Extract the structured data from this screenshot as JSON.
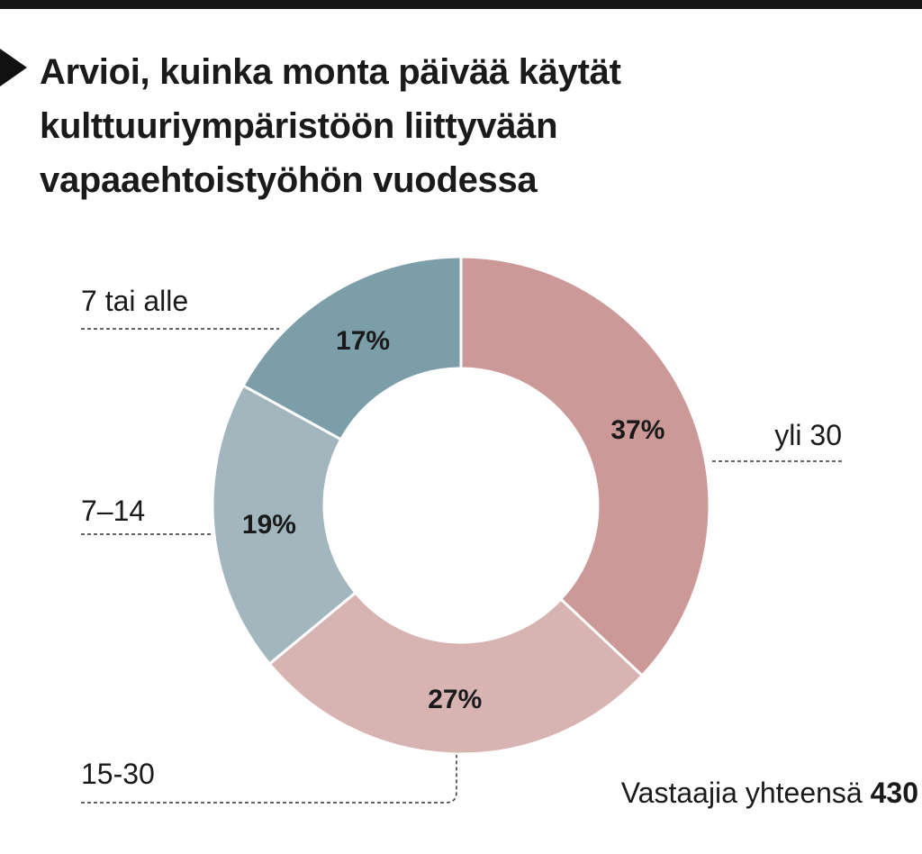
{
  "title_lines": [
    "Arvioi, kuinka monta päivää käytät",
    "kulttuuriympäristöön liittyvään",
    "vapaaehtoistyöhön vuodessa"
  ],
  "footer": {
    "label": "Vastaajia yhteensä",
    "value": "430"
  },
  "chart_data": {
    "type": "pie",
    "donut": true,
    "title": "Arvioi, kuinka monta päivää käytät kulttuuriympäristöön liittyvään vapaaehtoistyöhön vuodessa",
    "start": "12 o'clock, clockwise",
    "slices": [
      {
        "category": "yli 30",
        "value": 37,
        "label": "37%",
        "color": "#cb9997"
      },
      {
        "category": "15-30",
        "value": 27,
        "label": "27%",
        "color": "#d7b3b2"
      },
      {
        "category": "7–14",
        "value": 19,
        "label": "19%",
        "color": "#a2b7bd"
      },
      {
        "category": "7 tai alle",
        "value": 17,
        "label": "17%",
        "color": "#7b9ea8"
      }
    ],
    "total_respondents": 430
  }
}
